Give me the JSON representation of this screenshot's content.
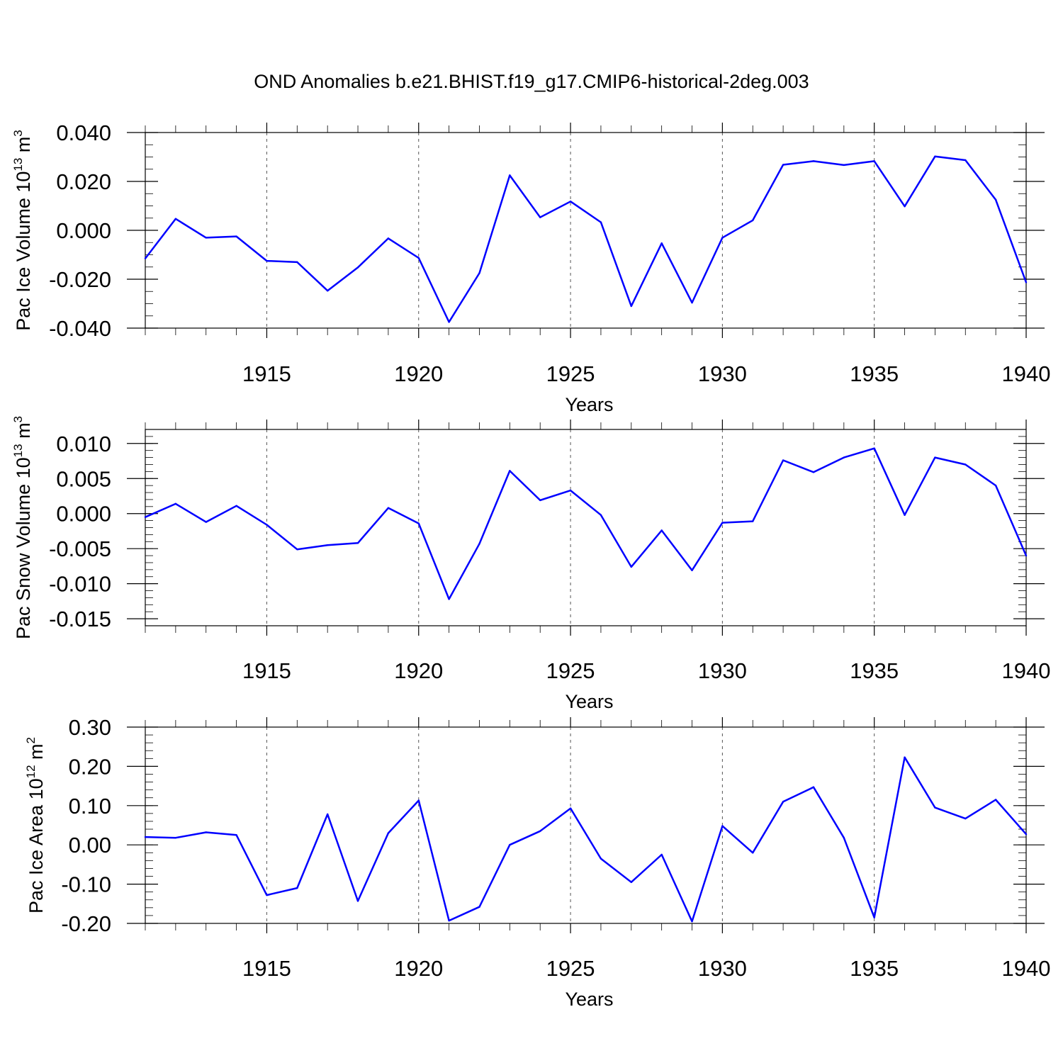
{
  "title": "OND Anomalies b.e21.BHIST.f19_g17.CMIP6-historical-2deg.003",
  "colors": {
    "line": "#0000ff",
    "axis": "#000000",
    "grid": "#555555"
  },
  "chart_data": [
    {
      "type": "line",
      "title": "OND Anomalies b.e21.BHIST.f19_g17.CMIP6-historical-2deg.003",
      "xlabel": "Years",
      "ylabel": {
        "text": "Pac Ice Volume 10",
        "sup": "13",
        "unit": " m",
        "unit_sup": "3"
      },
      "xlim": [
        1911,
        1940
      ],
      "ylim": [
        -0.04,
        0.04
      ],
      "x_ticks": [
        1915,
        1920,
        1925,
        1930,
        1935,
        1940
      ],
      "y_ticks": [
        -0.04,
        -0.02,
        0.0,
        0.02,
        0.04
      ],
      "y_tick_labels": [
        "-0.040",
        "-0.020",
        "0.000",
        "0.020",
        "0.040"
      ],
      "y_minor_step": 0.005,
      "grid": "vertical dashed at major x ticks",
      "x": [
        1911,
        1912,
        1913,
        1914,
        1915,
        1916,
        1917,
        1918,
        1919,
        1920,
        1921,
        1922,
        1923,
        1924,
        1925,
        1926,
        1927,
        1928,
        1929,
        1930,
        1931,
        1932,
        1933,
        1934,
        1935,
        1936,
        1937,
        1938,
        1939,
        1940
      ],
      "values": [
        -0.0115,
        0.0047,
        -0.003,
        -0.0025,
        -0.0125,
        -0.013,
        -0.0247,
        -0.0152,
        -0.0033,
        -0.0113,
        -0.0375,
        -0.0175,
        0.0225,
        0.0053,
        0.0118,
        0.0033,
        -0.031,
        -0.0053,
        -0.0296,
        -0.003,
        0.0041,
        0.0268,
        0.0283,
        0.0267,
        0.0283,
        0.0098,
        0.0302,
        0.0287,
        0.0125,
        -0.0213
      ]
    },
    {
      "type": "line",
      "xlabel": "Years",
      "ylabel": {
        "text": "Pac Snow Volume 10",
        "sup": "13",
        "unit": " m",
        "unit_sup": "3"
      },
      "xlim": [
        1911,
        1940
      ],
      "ylim": [
        -0.016,
        0.012
      ],
      "x_ticks": [
        1915,
        1920,
        1925,
        1930,
        1935,
        1940
      ],
      "y_ticks": [
        -0.015,
        -0.01,
        -0.005,
        0.0,
        0.005,
        0.01
      ],
      "y_tick_labels": [
        "-0.015",
        "-0.010",
        "-0.005",
        "0.000",
        "0.005",
        "0.010"
      ],
      "y_minor_step": 0.001,
      "grid": "vertical dashed at major x ticks",
      "x": [
        1911,
        1912,
        1913,
        1914,
        1915,
        1916,
        1917,
        1918,
        1919,
        1920,
        1921,
        1922,
        1923,
        1924,
        1925,
        1926,
        1927,
        1928,
        1929,
        1930,
        1931,
        1932,
        1933,
        1934,
        1935,
        1936,
        1937,
        1938,
        1939,
        1940
      ],
      "values": [
        -0.0005,
        0.0014,
        -0.0012,
        0.0011,
        -0.0016,
        -0.0051,
        -0.0045,
        -0.0042,
        0.0008,
        -0.0014,
        -0.0122,
        -0.0043,
        0.0061,
        0.0019,
        0.0033,
        -0.0002,
        -0.0076,
        -0.0024,
        -0.0081,
        -0.0013,
        -0.0011,
        0.0076,
        0.0059,
        0.008,
        0.0093,
        -0.0002,
        0.008,
        0.007,
        0.004,
        -0.006
      ]
    },
    {
      "type": "line",
      "xlabel": "Years",
      "ylabel": {
        "text": "Pac Ice Area 10",
        "sup": "12",
        "unit": " m",
        "unit_sup": "2"
      },
      "xlim": [
        1911,
        1940
      ],
      "ylim": [
        -0.2,
        0.3
      ],
      "x_ticks": [
        1915,
        1920,
        1925,
        1930,
        1935,
        1940
      ],
      "y_ticks": [
        -0.2,
        -0.1,
        0.0,
        0.1,
        0.2,
        0.3
      ],
      "y_tick_labels": [
        "-0.20",
        "-0.10",
        "0.00",
        "0.10",
        "0.20",
        "0.30"
      ],
      "y_minor_step": 0.02,
      "grid": "vertical dashed at major x ticks",
      "x": [
        1911,
        1912,
        1913,
        1914,
        1915,
        1916,
        1917,
        1918,
        1919,
        1920,
        1921,
        1922,
        1923,
        1924,
        1925,
        1926,
        1927,
        1928,
        1929,
        1930,
        1931,
        1932,
        1933,
        1934,
        1935,
        1936,
        1937,
        1938,
        1939,
        1940
      ],
      "values": [
        0.02,
        0.018,
        0.032,
        0.025,
        -0.128,
        -0.11,
        0.078,
        -0.143,
        0.03,
        0.113,
        -0.193,
        -0.158,
        0.0,
        0.035,
        0.093,
        -0.035,
        -0.095,
        -0.025,
        -0.195,
        0.048,
        -0.02,
        0.11,
        0.147,
        0.018,
        -0.185,
        0.223,
        0.095,
        0.067,
        0.115,
        0.027
      ]
    }
  ]
}
